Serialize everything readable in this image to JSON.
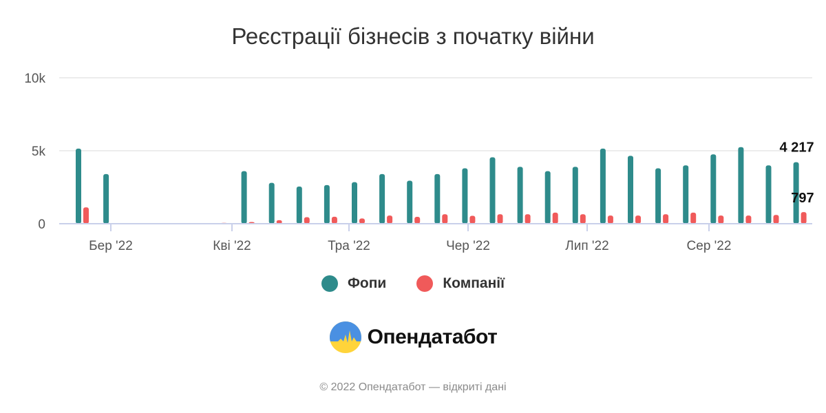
{
  "title": "Реєстрації бізнесів з початку війни",
  "colors": {
    "fop": "#2e8b8b",
    "companies": "#f05a5a",
    "grid": "#e6e6e6",
    "axis": "#c9d0ea"
  },
  "chart_data": {
    "type": "bar",
    "title": "Реєстрації бізнесів з початку війни",
    "ylim": [
      0,
      10000
    ],
    "y_ticks": [
      "0",
      "5k",
      "10k"
    ],
    "x_ticks": [
      "Бер '22",
      "Кві '22",
      "Тра '22",
      "Чер '22",
      "Лип '22",
      "Сер '22"
    ],
    "grid": true,
    "legend_position": "bottom",
    "series": [
      {
        "name": "Фопи",
        "values": [
          5150,
          3400,
          0,
          0,
          0,
          0,
          3600,
          2800,
          2550,
          2650,
          2850,
          3400,
          2950,
          3400,
          3800,
          4550,
          3900,
          3600,
          3900,
          5150,
          4650,
          3800,
          4000,
          4750,
          5250,
          4000,
          4217
        ]
      },
      {
        "name": "Компанії",
        "values": [
          1120,
          0,
          0,
          0,
          20,
          60,
          120,
          240,
          450,
          480,
          360,
          560,
          470,
          650,
          540,
          650,
          650,
          760,
          650,
          560,
          560,
          650,
          760,
          560,
          560,
          600,
          797
        ]
      }
    ],
    "data_labels": [
      "4 217",
      "797"
    ]
  },
  "logo": {
    "name": "Опендатабот"
  },
  "footer": "© 2022 Опендатабот — відкриті дані"
}
